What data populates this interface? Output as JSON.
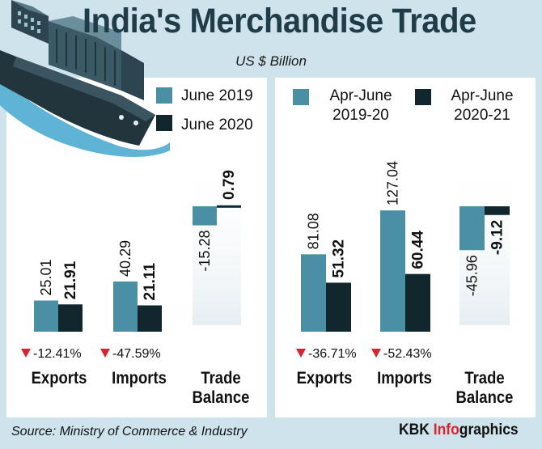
{
  "title": "India's Merchandise Trade",
  "subtitle": "US $ Billion",
  "colors": {
    "background": "#cfe3ec",
    "panel": "#ffffff",
    "series_light": "#4a8fa3",
    "series_dark": "#12262e",
    "title": "#1f3c48",
    "decline_marker": "#d9232d",
    "brand_accent": "#d9232d"
  },
  "chart_data": [
    {
      "type": "bar",
      "categories": [
        "Exports",
        "Imports",
        "Trade\nBalance"
      ],
      "series": [
        {
          "name": "June 2019",
          "values": [
            25.01,
            40.29,
            -15.28
          ],
          "labels": [
            "25.01",
            "40.29",
            "-15.28"
          ]
        },
        {
          "name": "June 2020",
          "values": [
            21.91,
            21.11,
            0.79
          ],
          "labels": [
            "21.91",
            "21.11",
            "0.79"
          ]
        }
      ],
      "changes": [
        "-12.41%",
        "-47.59%",
        ""
      ]
    },
    {
      "type": "bar",
      "categories": [
        "Exports",
        "Imports",
        "Trade\nBalance"
      ],
      "series": [
        {
          "name": "Apr-June\n2019-20",
          "values": [
            81.08,
            127.04,
            -45.96
          ],
          "labels": [
            "81.08",
            "127.04",
            "-45.96"
          ]
        },
        {
          "name": "Apr-June\n2020-21",
          "values": [
            51.32,
            60.44,
            -9.12
          ],
          "labels": [
            "51.32",
            "60.44",
            "-9.12"
          ]
        }
      ],
      "changes": [
        "-36.71%",
        "-52.43%",
        ""
      ]
    }
  ],
  "icons": [
    "cargo-ship-icon",
    "decline-triangle-icon"
  ],
  "footer": {
    "source": "Source: Ministry of Commerce & Industry",
    "brand_prefix": "KBK ",
    "brand_accent": "Info",
    "brand_suffix": "graphics"
  }
}
